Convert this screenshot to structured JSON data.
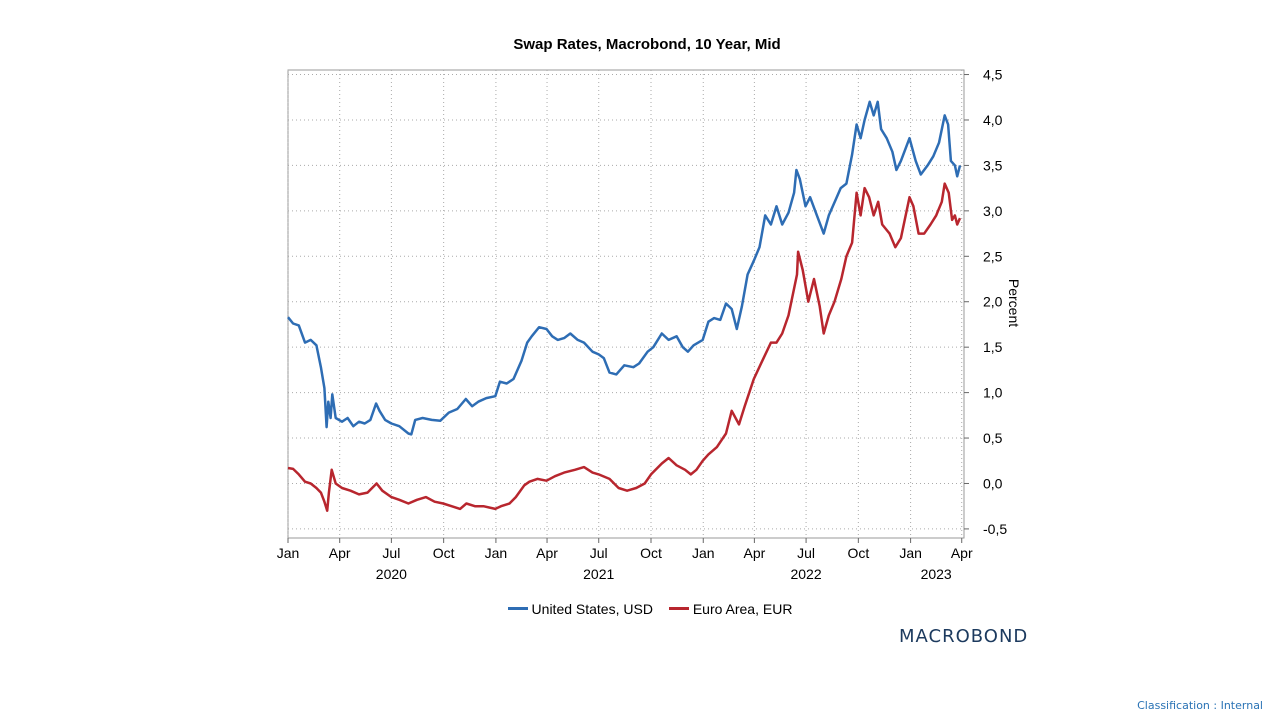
{
  "chart_data": {
    "type": "line",
    "title": "Swap Rates, Macrobond, 10 Year, Mid",
    "ylabel": "Percent",
    "ylim": [
      -0.6,
      4.55
    ],
    "yticks": [
      4.5,
      4.0,
      3.5,
      3.0,
      2.5,
      2.0,
      1.5,
      1.0,
      0.5,
      0.0,
      -0.5
    ],
    "ytick_labels": [
      "4,5",
      "4,0",
      "3,5",
      "3,0",
      "2,5",
      "2,0",
      "1,5",
      "1,0",
      "0,5",
      "0,0",
      "-0,5"
    ],
    "xlim": [
      "2020-01-01",
      "2023-04-05"
    ],
    "xticks": [
      {
        "date": "2020-01-01",
        "label": "Jan"
      },
      {
        "date": "2020-04-01",
        "label": "Apr"
      },
      {
        "date": "2020-07-01",
        "label": "Jul"
      },
      {
        "date": "2020-10-01",
        "label": "Oct"
      },
      {
        "date": "2021-01-01",
        "label": "Jan"
      },
      {
        "date": "2021-04-01",
        "label": "Apr"
      },
      {
        "date": "2021-07-01",
        "label": "Jul"
      },
      {
        "date": "2021-10-01",
        "label": "Oct"
      },
      {
        "date": "2022-01-01",
        "label": "Jan"
      },
      {
        "date": "2022-04-01",
        "label": "Apr"
      },
      {
        "date": "2022-07-01",
        "label": "Jul"
      },
      {
        "date": "2022-10-01",
        "label": "Oct"
      },
      {
        "date": "2023-01-01",
        "label": "Jan"
      },
      {
        "date": "2023-04-01",
        "label": "Apr"
      }
    ],
    "year_labels": [
      {
        "date": "2020-07-01",
        "label": "2020"
      },
      {
        "date": "2021-07-01",
        "label": "2021"
      },
      {
        "date": "2022-07-01",
        "label": "2022"
      },
      {
        "date": "2023-02-15",
        "label": "2023"
      }
    ],
    "grid": true,
    "legend_position": "bottom-center",
    "series": [
      {
        "name": "United States, USD",
        "color": "#2e6db4",
        "points": [
          [
            "2020-01-01",
            1.83
          ],
          [
            "2020-01-10",
            1.76
          ],
          [
            "2020-01-20",
            1.74
          ],
          [
            "2020-01-31",
            1.55
          ],
          [
            "2020-02-10",
            1.58
          ],
          [
            "2020-02-20",
            1.52
          ],
          [
            "2020-02-28",
            1.28
          ],
          [
            "2020-03-05",
            1.05
          ],
          [
            "2020-03-09",
            0.62
          ],
          [
            "2020-03-12",
            0.9
          ],
          [
            "2020-03-16",
            0.72
          ],
          [
            "2020-03-19",
            0.98
          ],
          [
            "2020-03-25",
            0.72
          ],
          [
            "2020-04-05",
            0.68
          ],
          [
            "2020-04-15",
            0.72
          ],
          [
            "2020-04-25",
            0.63
          ],
          [
            "2020-05-05",
            0.68
          ],
          [
            "2020-05-15",
            0.66
          ],
          [
            "2020-05-25",
            0.7
          ],
          [
            "2020-06-04",
            0.88
          ],
          [
            "2020-06-10",
            0.8
          ],
          [
            "2020-06-20",
            0.7
          ],
          [
            "2020-07-01",
            0.66
          ],
          [
            "2020-07-15",
            0.63
          ],
          [
            "2020-07-31",
            0.55
          ],
          [
            "2020-08-05",
            0.54
          ],
          [
            "2020-08-12",
            0.7
          ],
          [
            "2020-08-25",
            0.72
          ],
          [
            "2020-09-10",
            0.7
          ],
          [
            "2020-09-25",
            0.69
          ],
          [
            "2020-10-10",
            0.78
          ],
          [
            "2020-10-25",
            0.82
          ],
          [
            "2020-11-09",
            0.93
          ],
          [
            "2020-11-20",
            0.85
          ],
          [
            "2020-12-01",
            0.9
          ],
          [
            "2020-12-15",
            0.94
          ],
          [
            "2020-12-31",
            0.96
          ],
          [
            "2021-01-08",
            1.12
          ],
          [
            "2021-01-20",
            1.1
          ],
          [
            "2021-02-01",
            1.15
          ],
          [
            "2021-02-15",
            1.35
          ],
          [
            "2021-02-25",
            1.55
          ],
          [
            "2021-03-05",
            1.62
          ],
          [
            "2021-03-18",
            1.72
          ],
          [
            "2021-03-31",
            1.7
          ],
          [
            "2021-04-10",
            1.62
          ],
          [
            "2021-04-20",
            1.58
          ],
          [
            "2021-05-01",
            1.6
          ],
          [
            "2021-05-12",
            1.65
          ],
          [
            "2021-05-25",
            1.58
          ],
          [
            "2021-06-05",
            1.55
          ],
          [
            "2021-06-20",
            1.45
          ],
          [
            "2021-07-01",
            1.42
          ],
          [
            "2021-07-10",
            1.38
          ],
          [
            "2021-07-20",
            1.22
          ],
          [
            "2021-08-01",
            1.2
          ],
          [
            "2021-08-15",
            1.3
          ],
          [
            "2021-08-31",
            1.28
          ],
          [
            "2021-09-10",
            1.32
          ],
          [
            "2021-09-25",
            1.45
          ],
          [
            "2021-10-05",
            1.5
          ],
          [
            "2021-10-20",
            1.65
          ],
          [
            "2021-11-01",
            1.58
          ],
          [
            "2021-11-15",
            1.62
          ],
          [
            "2021-11-26",
            1.5
          ],
          [
            "2021-12-05",
            1.45
          ],
          [
            "2021-12-15",
            1.52
          ],
          [
            "2021-12-31",
            1.58
          ],
          [
            "2022-01-10",
            1.78
          ],
          [
            "2022-01-20",
            1.82
          ],
          [
            "2022-01-31",
            1.8
          ],
          [
            "2022-02-10",
            1.98
          ],
          [
            "2022-02-20",
            1.92
          ],
          [
            "2022-03-01",
            1.7
          ],
          [
            "2022-03-10",
            1.95
          ],
          [
            "2022-03-20",
            2.3
          ],
          [
            "2022-03-31",
            2.45
          ],
          [
            "2022-04-10",
            2.6
          ],
          [
            "2022-04-20",
            2.95
          ],
          [
            "2022-04-30",
            2.85
          ],
          [
            "2022-05-10",
            3.05
          ],
          [
            "2022-05-20",
            2.85
          ],
          [
            "2022-05-31",
            2.98
          ],
          [
            "2022-06-10",
            3.2
          ],
          [
            "2022-06-14",
            3.45
          ],
          [
            "2022-06-20",
            3.35
          ],
          [
            "2022-06-30",
            3.05
          ],
          [
            "2022-07-08",
            3.15
          ],
          [
            "2022-07-20",
            2.95
          ],
          [
            "2022-08-01",
            2.75
          ],
          [
            "2022-08-10",
            2.95
          ],
          [
            "2022-08-22",
            3.12
          ],
          [
            "2022-08-31",
            3.25
          ],
          [
            "2022-09-10",
            3.3
          ],
          [
            "2022-09-20",
            3.62
          ],
          [
            "2022-09-28",
            3.95
          ],
          [
            "2022-10-05",
            3.8
          ],
          [
            "2022-10-12",
            4.0
          ],
          [
            "2022-10-21",
            4.2
          ],
          [
            "2022-10-28",
            4.05
          ],
          [
            "2022-11-04",
            4.2
          ],
          [
            "2022-11-10",
            3.9
          ],
          [
            "2022-11-20",
            3.8
          ],
          [
            "2022-11-30",
            3.65
          ],
          [
            "2022-12-07",
            3.45
          ],
          [
            "2022-12-15",
            3.55
          ],
          [
            "2022-12-30",
            3.8
          ],
          [
            "2023-01-10",
            3.55
          ],
          [
            "2023-01-19",
            3.4
          ],
          [
            "2023-01-31",
            3.5
          ],
          [
            "2023-02-10",
            3.6
          ],
          [
            "2023-02-20",
            3.75
          ],
          [
            "2023-03-02",
            4.05
          ],
          [
            "2023-03-08",
            3.95
          ],
          [
            "2023-03-13",
            3.55
          ],
          [
            "2023-03-20",
            3.5
          ],
          [
            "2023-03-24",
            3.38
          ],
          [
            "2023-03-29",
            3.5
          ]
        ]
      },
      {
        "name": "Euro Area, EUR",
        "color": "#b8262e",
        "points": [
          [
            "2020-01-01",
            0.17
          ],
          [
            "2020-01-10",
            0.16
          ],
          [
            "2020-01-20",
            0.1
          ],
          [
            "2020-01-31",
            0.02
          ],
          [
            "2020-02-10",
            0.0
          ],
          [
            "2020-02-20",
            -0.05
          ],
          [
            "2020-02-28",
            -0.1
          ],
          [
            "2020-03-05",
            -0.2
          ],
          [
            "2020-03-10",
            -0.3
          ],
          [
            "2020-03-13",
            -0.1
          ],
          [
            "2020-03-18",
            0.15
          ],
          [
            "2020-03-25",
            0.0
          ],
          [
            "2020-04-05",
            -0.05
          ],
          [
            "2020-04-20",
            -0.08
          ],
          [
            "2020-05-05",
            -0.12
          ],
          [
            "2020-05-20",
            -0.1
          ],
          [
            "2020-06-05",
            0.0
          ],
          [
            "2020-06-15",
            -0.08
          ],
          [
            "2020-07-01",
            -0.15
          ],
          [
            "2020-07-15",
            -0.18
          ],
          [
            "2020-07-31",
            -0.22
          ],
          [
            "2020-08-15",
            -0.18
          ],
          [
            "2020-08-31",
            -0.15
          ],
          [
            "2020-09-15",
            -0.2
          ],
          [
            "2020-09-30",
            -0.22
          ],
          [
            "2020-10-15",
            -0.25
          ],
          [
            "2020-10-30",
            -0.28
          ],
          [
            "2020-11-10",
            -0.22
          ],
          [
            "2020-11-25",
            -0.25
          ],
          [
            "2020-12-10",
            -0.25
          ],
          [
            "2020-12-31",
            -0.28
          ],
          [
            "2021-01-10",
            -0.25
          ],
          [
            "2021-01-25",
            -0.22
          ],
          [
            "2021-02-05",
            -0.15
          ],
          [
            "2021-02-20",
            -0.02
          ],
          [
            "2021-03-01",
            0.02
          ],
          [
            "2021-03-15",
            0.05
          ],
          [
            "2021-03-31",
            0.03
          ],
          [
            "2021-04-15",
            0.08
          ],
          [
            "2021-05-01",
            0.12
          ],
          [
            "2021-05-20",
            0.15
          ],
          [
            "2021-06-05",
            0.18
          ],
          [
            "2021-06-20",
            0.12
          ],
          [
            "2021-07-01",
            0.1
          ],
          [
            "2021-07-20",
            0.05
          ],
          [
            "2021-08-05",
            -0.05
          ],
          [
            "2021-08-20",
            -0.08
          ],
          [
            "2021-09-05",
            -0.05
          ],
          [
            "2021-09-20",
            0.0
          ],
          [
            "2021-10-01",
            0.1
          ],
          [
            "2021-10-20",
            0.22
          ],
          [
            "2021-11-01",
            0.28
          ],
          [
            "2021-11-15",
            0.2
          ],
          [
            "2021-11-30",
            0.15
          ],
          [
            "2021-12-10",
            0.1
          ],
          [
            "2021-12-20",
            0.15
          ],
          [
            "2021-12-31",
            0.25
          ],
          [
            "2022-01-10",
            0.32
          ],
          [
            "2022-01-25",
            0.4
          ],
          [
            "2022-02-10",
            0.55
          ],
          [
            "2022-02-20",
            0.8
          ],
          [
            "2022-03-05",
            0.65
          ],
          [
            "2022-03-15",
            0.85
          ],
          [
            "2022-03-31",
            1.15
          ],
          [
            "2022-04-15",
            1.35
          ],
          [
            "2022-04-30",
            1.55
          ],
          [
            "2022-05-10",
            1.55
          ],
          [
            "2022-05-20",
            1.65
          ],
          [
            "2022-05-31",
            1.85
          ],
          [
            "2022-06-15",
            2.3
          ],
          [
            "2022-06-17",
            2.55
          ],
          [
            "2022-06-25",
            2.35
          ],
          [
            "2022-07-05",
            2.0
          ],
          [
            "2022-07-15",
            2.25
          ],
          [
            "2022-07-25",
            1.95
          ],
          [
            "2022-08-01",
            1.65
          ],
          [
            "2022-08-10",
            1.85
          ],
          [
            "2022-08-20",
            2.0
          ],
          [
            "2022-09-01",
            2.25
          ],
          [
            "2022-09-10",
            2.5
          ],
          [
            "2022-09-20",
            2.65
          ],
          [
            "2022-09-28",
            3.2
          ],
          [
            "2022-10-05",
            2.95
          ],
          [
            "2022-10-12",
            3.25
          ],
          [
            "2022-10-20",
            3.15
          ],
          [
            "2022-10-28",
            2.95
          ],
          [
            "2022-11-05",
            3.1
          ],
          [
            "2022-11-12",
            2.85
          ],
          [
            "2022-11-25",
            2.75
          ],
          [
            "2022-12-05",
            2.6
          ],
          [
            "2022-12-15",
            2.7
          ],
          [
            "2022-12-30",
            3.15
          ],
          [
            "2023-01-06",
            3.05
          ],
          [
            "2023-01-15",
            2.75
          ],
          [
            "2023-01-25",
            2.75
          ],
          [
            "2023-02-05",
            2.85
          ],
          [
            "2023-02-15",
            2.95
          ],
          [
            "2023-02-25",
            3.1
          ],
          [
            "2023-03-02",
            3.3
          ],
          [
            "2023-03-09",
            3.2
          ],
          [
            "2023-03-15",
            2.9
          ],
          [
            "2023-03-20",
            2.95
          ],
          [
            "2023-03-24",
            2.85
          ],
          [
            "2023-03-29",
            2.92
          ]
        ]
      }
    ]
  },
  "brand_logo": "MACROBOND",
  "classification_label": "Classification : Internal"
}
